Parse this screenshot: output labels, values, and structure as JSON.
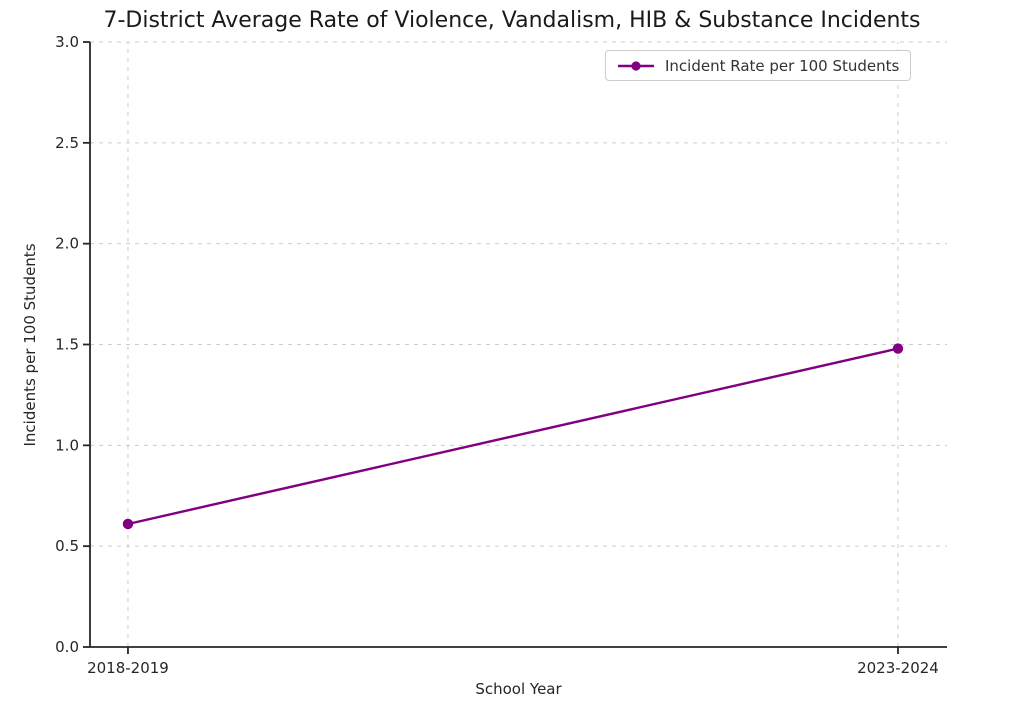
{
  "chart_data": {
    "type": "line",
    "title": "7-District Average Rate of Violence, Vandalism, HIB & Substance Incidents",
    "xlabel": "School Year",
    "ylabel": "Incidents per 100 Students",
    "categories": [
      "2018-2019",
      "2023-2024"
    ],
    "series": [
      {
        "name": "Incident Rate per 100 Students",
        "values": [
          0.61,
          1.48
        ],
        "color": "#800080",
        "marker": "circle"
      }
    ],
    "ylim": [
      0.0,
      3.0
    ],
    "yticks": [
      0.0,
      0.5,
      1.0,
      1.5,
      2.0,
      2.5,
      3.0
    ],
    "ytick_format_decimals": 1,
    "grid": true,
    "grid_style": "dashed",
    "legend": {
      "position": "upper right",
      "label": "Incident Rate per 100 Students"
    },
    "colors": {
      "line": "#800080",
      "grid": "#cccccc",
      "axis": "#262626",
      "tick_text": "#262626",
      "title_text": "#1a1a1a",
      "legend_border": "#cccccc",
      "background": "#ffffff"
    }
  }
}
